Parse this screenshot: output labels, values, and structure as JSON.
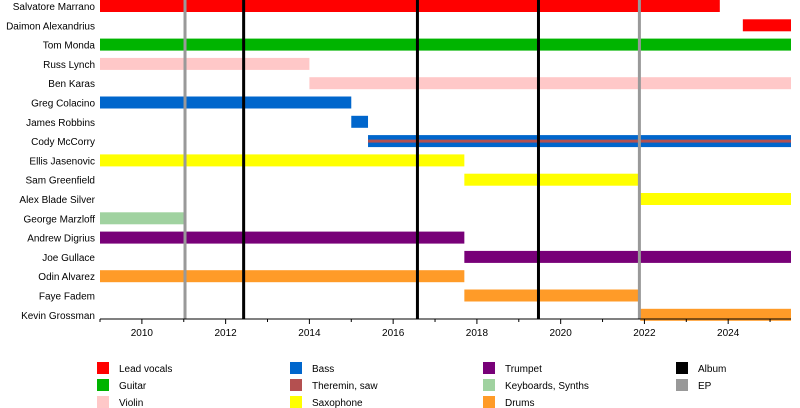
{
  "chart_data": {
    "type": "timeline",
    "xlim": [
      2009,
      2025.5
    ],
    "x_ticks": [
      2010,
      2012,
      2014,
      2016,
      2018,
      2020,
      2022,
      2024
    ],
    "colors": {
      "Lead vocals": "#ff0000",
      "Guitar": "#00b400",
      "Violin": "#ffc8c8",
      "Bass": "#0066cc",
      "Theremin, saw": "#b45050",
      "Saxophone": "#ffff00",
      "Trumpet": "#780078",
      "Keyboards, Synths": "#a0d2a0",
      "Drums": "#ff9b28",
      "Album": "#000000",
      "EP": "#999999"
    },
    "members": [
      {
        "name": "Salvatore Marrano",
        "bars": [
          {
            "role": "Lead vocals",
            "start": 2009,
            "end": 2023.8
          }
        ]
      },
      {
        "name": "Daimon Alexandrius",
        "bars": [
          {
            "role": "Lead vocals",
            "start": 2024.35,
            "end": 2025.5
          }
        ]
      },
      {
        "name": "Tom Monda",
        "bars": [
          {
            "role": "Guitar",
            "start": 2009,
            "end": 2025.5
          }
        ]
      },
      {
        "name": "Russ Lynch",
        "bars": [
          {
            "role": "Violin",
            "start": 2009,
            "end": 2014.0
          }
        ]
      },
      {
        "name": "Ben Karas",
        "bars": [
          {
            "role": "Violin",
            "start": 2014.0,
            "end": 2025.5
          }
        ]
      },
      {
        "name": "Greg Colacino",
        "bars": [
          {
            "role": "Bass",
            "start": 2009,
            "end": 2015.0
          }
        ]
      },
      {
        "name": "James Robbins",
        "bars": [
          {
            "role": "Bass",
            "start": 2015.0,
            "end": 2015.4
          }
        ]
      },
      {
        "name": "Cody McCorry",
        "bars": [
          {
            "role": "Bass",
            "start": 2015.4,
            "end": 2025.5
          },
          {
            "role": "Theremin, saw",
            "start": 2015.4,
            "end": 2025.5,
            "thin": true
          }
        ]
      },
      {
        "name": "Ellis Jasenovic",
        "bars": [
          {
            "role": "Saxophone",
            "start": 2009,
            "end": 2017.7
          }
        ]
      },
      {
        "name": "Sam Greenfield",
        "bars": [
          {
            "role": "Saxophone",
            "start": 2017.7,
            "end": 2021.9
          }
        ]
      },
      {
        "name": "Alex Blade Silver",
        "bars": [
          {
            "role": "Saxophone",
            "start": 2021.9,
            "end": 2025.5
          }
        ]
      },
      {
        "name": "George Marzloff",
        "bars": [
          {
            "role": "Keyboards, Synths",
            "start": 2009,
            "end": 2011.0
          }
        ]
      },
      {
        "name": "Andrew Digrius",
        "bars": [
          {
            "role": "Trumpet",
            "start": 2009,
            "end": 2017.7
          }
        ]
      },
      {
        "name": "Joe Gullace",
        "bars": [
          {
            "role": "Trumpet",
            "start": 2017.7,
            "end": 2025.5
          }
        ]
      },
      {
        "name": "Odin Alvarez",
        "bars": [
          {
            "role": "Drums",
            "start": 2009,
            "end": 2017.7
          }
        ]
      },
      {
        "name": "Faye Fadem",
        "bars": [
          {
            "role": "Drums",
            "start": 2017.7,
            "end": 2021.9
          }
        ]
      },
      {
        "name": "Kevin Grossman",
        "bars": [
          {
            "role": "Drums",
            "start": 2021.9,
            "end": 2025.5
          }
        ]
      }
    ],
    "releases": [
      {
        "type": "EP",
        "date": 2011.03
      },
      {
        "type": "Album",
        "date": 2012.43
      },
      {
        "type": "Album",
        "date": 2016.58
      },
      {
        "type": "Album",
        "date": 2019.47
      },
      {
        "type": "EP",
        "date": 2021.88
      }
    ],
    "legend": [
      "Lead vocals",
      "Guitar",
      "Violin",
      "Bass",
      "Theremin, saw",
      "Saxophone",
      "Trumpet",
      "Keyboards, Synths",
      "Drums",
      "Album",
      "EP"
    ],
    "legend_placement": "bottom"
  }
}
